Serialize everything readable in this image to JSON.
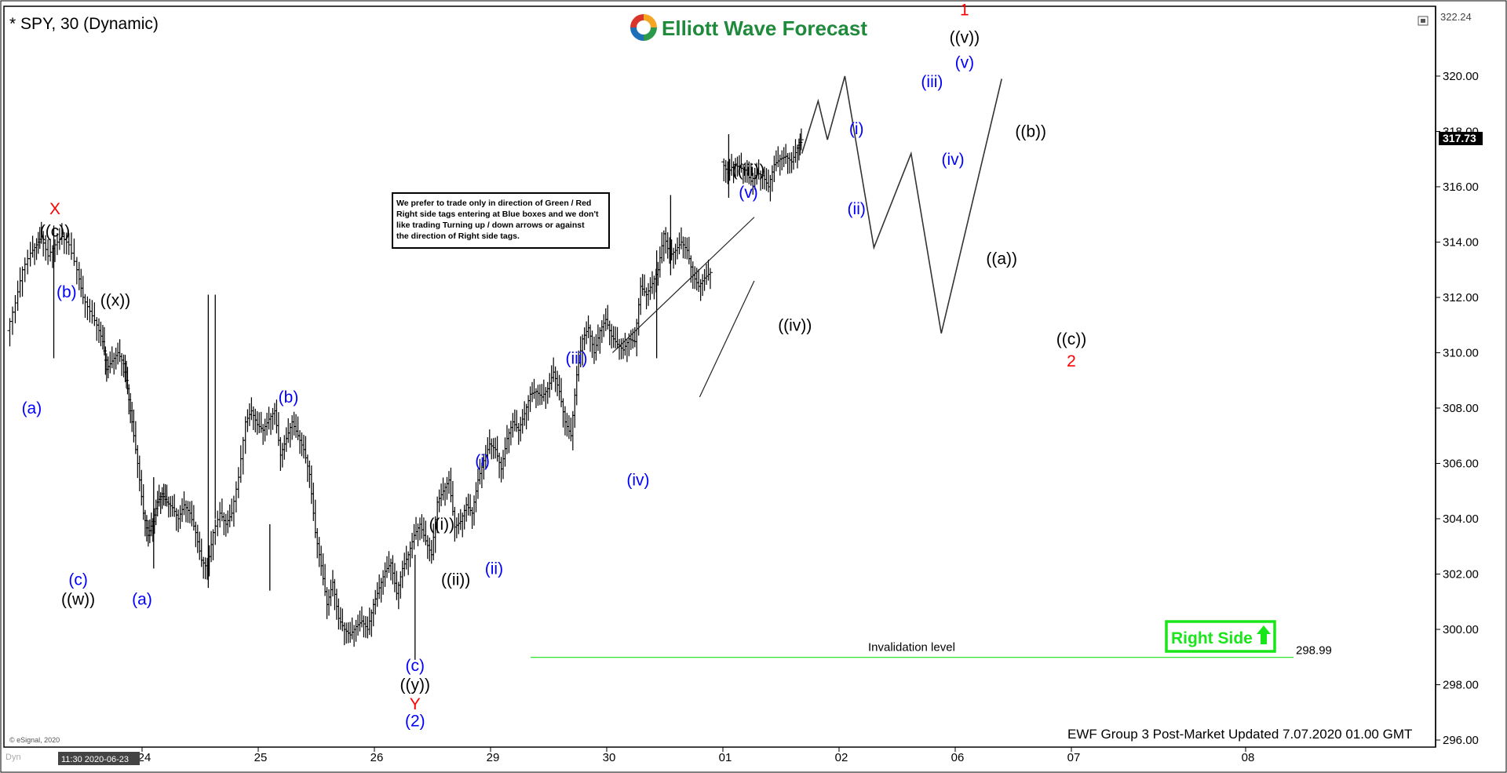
{
  "header": {
    "symbol_title": "* SPY, 30 (Dynamic)",
    "logo_text": "Elliott Wave Forecast",
    "logo_colors": [
      "#d9352b",
      "#f4a623",
      "#2a9a4a",
      "#1d6fb8"
    ]
  },
  "note": {
    "lines": [
      "We prefer to trade only in direction of Green / Red",
      "Right side tags entering at Blue boxes and we don't",
      "like trading Turning up / down arrows or against",
      "the direction of Right side tags."
    ]
  },
  "right_side_tag": {
    "label": "Right Side",
    "color": "#19e619",
    "arrow_icon": "up-arrow-icon"
  },
  "invalidation": {
    "label": "Invalidation level",
    "value": 298.99,
    "value_label": "298.99",
    "color": "#2ee62e"
  },
  "footer": {
    "update_text": "EWF Group 3 Post-Market Updated 7.07.2020 01.00 GMT",
    "copyright": "© eSignal, 2020",
    "cursor_time": "11:30 2020-06-23",
    "corner_label": "Dyn"
  },
  "axis": {
    "last_price": "317.73",
    "top_price": "322.24"
  },
  "chart_data": {
    "type": "ohlc",
    "symbol": "SPY",
    "interval": "30",
    "y_range": [
      296,
      322.24
    ],
    "y_ticks": [
      "296.00",
      "298.00",
      "300.00",
      "302.00",
      "304.00",
      "306.00",
      "308.00",
      "310.00",
      "312.00",
      "314.00",
      "316.00",
      "318.00",
      "320.00"
    ],
    "x_ticks": [
      {
        "label": "24",
        "pos": 0
      },
      {
        "label": "25",
        "pos": 1
      },
      {
        "label": "26",
        "pos": 2
      },
      {
        "label": "29",
        "pos": 3
      },
      {
        "label": "30",
        "pos": 4
      },
      {
        "label": "01",
        "pos": 5
      },
      {
        "label": "02",
        "pos": 6
      },
      {
        "label": "06",
        "pos": 7
      },
      {
        "label": "07",
        "pos": 8
      },
      {
        "label": "08",
        "pos": 9.5
      }
    ],
    "price_path": [
      [
        -1.15,
        310.8
      ],
      [
        -1.08,
        311.8
      ],
      [
        -1.02,
        313.0
      ],
      [
        -0.95,
        313.6
      ],
      [
        -0.9,
        313.9
      ],
      [
        -0.86,
        314.2
      ],
      [
        -0.8,
        313.5
      ],
      [
        -0.74,
        313.9
      ],
      [
        -0.68,
        314.2
      ],
      [
        -0.62,
        313.9
      ],
      [
        -0.55,
        313.0
      ],
      [
        -0.5,
        312.0
      ],
      [
        -0.44,
        311.5
      ],
      [
        -0.38,
        311.0
      ],
      [
        -0.33,
        310.4
      ],
      [
        -0.3,
        309.4
      ],
      [
        -0.25,
        309.7
      ],
      [
        -0.2,
        310.0
      ],
      [
        -0.15,
        309.6
      ],
      [
        -0.12,
        308.7
      ],
      [
        -0.08,
        307.5
      ],
      [
        -0.03,
        306.0
      ],
      [
        0.02,
        304.2
      ],
      [
        0.06,
        303.4
      ],
      [
        0.1,
        303.9
      ],
      [
        0.14,
        304.6
      ],
      [
        0.18,
        304.9
      ],
      [
        0.22,
        304.6
      ],
      [
        0.27,
        304.4
      ],
      [
        0.32,
        304.0
      ],
      [
        0.37,
        304.5
      ],
      [
        0.42,
        304.2
      ],
      [
        0.47,
        303.5
      ],
      [
        0.52,
        302.5
      ],
      [
        0.57,
        302.2
      ],
      [
        0.62,
        303.5
      ],
      [
        0.68,
        304.2
      ],
      [
        0.73,
        303.8
      ],
      [
        0.78,
        304.2
      ],
      [
        0.84,
        305.5
      ],
      [
        0.9,
        307.5
      ],
      [
        0.95,
        307.9
      ],
      [
        1.0,
        307.4
      ],
      [
        1.05,
        307.2
      ],
      [
        1.1,
        307.6
      ],
      [
        1.15,
        307.9
      ],
      [
        1.2,
        306.3
      ],
      [
        1.25,
        306.9
      ],
      [
        1.3,
        307.5
      ],
      [
        1.35,
        307.0
      ],
      [
        1.4,
        306.5
      ],
      [
        1.45,
        305.6
      ],
      [
        1.5,
        303.5
      ],
      [
        1.55,
        302.3
      ],
      [
        1.6,
        300.9
      ],
      [
        1.65,
        301.7
      ],
      [
        1.7,
        300.4
      ],
      [
        1.75,
        300.0
      ],
      [
        1.8,
        299.8
      ],
      [
        1.85,
        300.1
      ],
      [
        1.9,
        300.3
      ],
      [
        1.95,
        300.0
      ],
      [
        2.0,
        300.9
      ],
      [
        2.05,
        301.5
      ],
      [
        2.1,
        302.1
      ],
      [
        2.15,
        302.4
      ],
      [
        2.2,
        301.3
      ],
      [
        2.25,
        302.2
      ],
      [
        2.3,
        302.7
      ],
      [
        2.35,
        303.4
      ],
      [
        2.4,
        303.8
      ],
      [
        2.45,
        303.2
      ],
      [
        2.5,
        302.7
      ],
      [
        2.55,
        304.6
      ],
      [
        2.6,
        305.0
      ],
      [
        2.65,
        305.4
      ],
      [
        2.7,
        303.7
      ],
      [
        2.75,
        303.9
      ],
      [
        2.8,
        304.5
      ],
      [
        2.85,
        304.2
      ],
      [
        2.9,
        305.4
      ],
      [
        2.95,
        306.1
      ],
      [
        3.0,
        306.7
      ],
      [
        3.05,
        306.5
      ],
      [
        3.1,
        305.8
      ],
      [
        3.15,
        306.9
      ],
      [
        3.2,
        307.5
      ],
      [
        3.25,
        307.2
      ],
      [
        3.3,
        307.8
      ],
      [
        3.35,
        308.5
      ],
      [
        3.4,
        308.6
      ],
      [
        3.45,
        308.4
      ],
      [
        3.5,
        308.7
      ],
      [
        3.55,
        309.3
      ],
      [
        3.6,
        308.6
      ],
      [
        3.65,
        307.5
      ],
      [
        3.7,
        307.0
      ],
      [
        3.75,
        309.2
      ],
      [
        3.8,
        310.5
      ],
      [
        3.85,
        310.9
      ],
      [
        3.9,
        310.0
      ],
      [
        3.95,
        310.8
      ],
      [
        4.0,
        311.2
      ],
      [
        4.05,
        310.6
      ],
      [
        4.1,
        310.3
      ],
      [
        4.15,
        310.1
      ],
      [
        4.2,
        310.5
      ],
      [
        4.25,
        310.4
      ],
      [
        4.3,
        312.4
      ],
      [
        4.35,
        312.1
      ],
      [
        4.4,
        312.5
      ],
      [
        4.45,
        313.0
      ],
      [
        4.5,
        314.3
      ],
      [
        4.55,
        313.5
      ],
      [
        4.6,
        313.7
      ],
      [
        4.65,
        314.0
      ],
      [
        4.7,
        313.7
      ],
      [
        4.75,
        312.8
      ],
      [
        4.8,
        312.4
      ],
      [
        4.85,
        312.7
      ],
      [
        4.9,
        312.9
      ],
      [
        5.0,
        316.9
      ],
      [
        5.05,
        316.5
      ],
      [
        5.1,
        316.8
      ],
      [
        5.15,
        316.7
      ],
      [
        5.2,
        316.6
      ],
      [
        5.25,
        316.2
      ],
      [
        5.3,
        316.5
      ],
      [
        5.35,
        316.4
      ],
      [
        5.4,
        316.0
      ],
      [
        5.45,
        316.8
      ],
      [
        5.5,
        317.0
      ],
      [
        5.55,
        317.1
      ],
      [
        5.6,
        316.9
      ],
      [
        5.65,
        317.4
      ],
      [
        5.68,
        317.7
      ]
    ],
    "spikes": [
      {
        "x": -0.76,
        "low": 309.8,
        "high": 314.6
      },
      {
        "x": 0.1,
        "low": 302.2,
        "high": 305.5
      },
      {
        "x": 0.57,
        "low": 301.5,
        "high": 312.1
      },
      {
        "x": 0.63,
        "low": 304.0,
        "high": 312.1
      },
      {
        "x": 1.1,
        "low": 301.4,
        "high": 303.8
      },
      {
        "x": 2.35,
        "low": 298.9,
        "high": 302.7
      },
      {
        "x": 4.43,
        "low": 309.8,
        "high": 313.7
      },
      {
        "x": 4.55,
        "low": 312.8,
        "high": 315.7
      },
      {
        "x": 5.05,
        "low": 315.6,
        "high": 317.9
      }
    ],
    "projection": [
      [
        5.68,
        317.2
      ],
      [
        5.82,
        319.1
      ],
      [
        5.9,
        317.7
      ],
      [
        6.05,
        320.0
      ],
      [
        6.3,
        313.8
      ],
      [
        6.62,
        317.2
      ],
      [
        6.88,
        310.7
      ],
      [
        7.4,
        319.9
      ]
    ],
    "trendlines": [
      {
        "from": [
          4.05,
          310.0
        ],
        "to": [
          5.27,
          314.9
        ]
      },
      {
        "from": [
          4.8,
          308.4
        ],
        "to": [
          5.27,
          312.6
        ]
      }
    ],
    "wave_labels": [
      {
        "text": "X",
        "x": -0.75,
        "y": 315.0,
        "color": "#ff0000"
      },
      {
        "text": "((c))",
        "x": -0.75,
        "y": 314.2,
        "color": "#000000"
      },
      {
        "text": "(b)",
        "x": -0.65,
        "y": 312.0,
        "color": "#0000ff"
      },
      {
        "text": "((x))",
        "x": -0.23,
        "y": 311.7,
        "color": "#000000"
      },
      {
        "text": "(a)",
        "x": -0.95,
        "y": 307.8,
        "color": "#0000ff"
      },
      {
        "text": "(c)",
        "x": -0.55,
        "y": 301.6,
        "color": "#0000ff"
      },
      {
        "text": "((w))",
        "x": -0.55,
        "y": 300.9,
        "color": "#000000"
      },
      {
        "text": "(a)",
        "x": 0.0,
        "y": 300.9,
        "color": "#0000ff"
      },
      {
        "text": "(b)",
        "x": 1.26,
        "y": 308.2,
        "color": "#0000ff"
      },
      {
        "text": "((i))",
        "x": 2.58,
        "y": 303.6,
        "color": "#000000"
      },
      {
        "text": "((ii))",
        "x": 2.7,
        "y": 301.6,
        "color": "#000000"
      },
      {
        "text": "(i)",
        "x": 2.93,
        "y": 305.9,
        "color": "#0000ff"
      },
      {
        "text": "(ii)",
        "x": 3.03,
        "y": 302.0,
        "color": "#0000ff"
      },
      {
        "text": "(iii)",
        "x": 3.74,
        "y": 309.6,
        "color": "#0000ff"
      },
      {
        "text": "(iv)",
        "x": 4.27,
        "y": 305.2,
        "color": "#0000ff"
      },
      {
        "text": "(c)",
        "x": 2.35,
        "y": 298.5,
        "color": "#0000ff"
      },
      {
        "text": "((y))",
        "x": 2.35,
        "y": 297.8,
        "color": "#000000"
      },
      {
        "text": "Y",
        "x": 2.35,
        "y": 297.1,
        "color": "#ff0000"
      },
      {
        "text": "(2)",
        "x": 2.35,
        "y": 296.5,
        "color": "#0000ff"
      },
      {
        "text": "((iii))",
        "x": 5.22,
        "y": 316.4,
        "color": "#000000"
      },
      {
        "text": "(v)",
        "x": 5.22,
        "y": 315.6,
        "color": "#0000ff"
      },
      {
        "text": "((iv))",
        "x": 5.62,
        "y": 310.8,
        "color": "#000000"
      },
      {
        "text": "(i)",
        "x": 6.15,
        "y": 317.9,
        "color": "#0000ff"
      },
      {
        "text": "(ii)",
        "x": 6.15,
        "y": 315.0,
        "color": "#0000ff"
      },
      {
        "text": "(iii)",
        "x": 6.8,
        "y": 319.6,
        "color": "#0000ff"
      },
      {
        "text": "(iv)",
        "x": 6.98,
        "y": 316.8,
        "color": "#0000ff"
      },
      {
        "text": "(v)",
        "x": 7.08,
        "y": 320.3,
        "color": "#0000ff"
      },
      {
        "text": "((v))",
        "x": 7.08,
        "y": 321.2,
        "color": "#000000"
      },
      {
        "text": "1",
        "x": 7.08,
        "y": 322.2,
        "color": "#ff0000"
      },
      {
        "text": "((a))",
        "x": 7.4,
        "y": 313.2,
        "color": "#000000"
      },
      {
        "text": "((b))",
        "x": 7.65,
        "y": 317.8,
        "color": "#000000"
      },
      {
        "text": "((c))",
        "x": 8.0,
        "y": 310.3,
        "color": "#000000"
      },
      {
        "text": "2",
        "x": 8.0,
        "y": 309.5,
        "color": "#ff0000"
      }
    ]
  }
}
